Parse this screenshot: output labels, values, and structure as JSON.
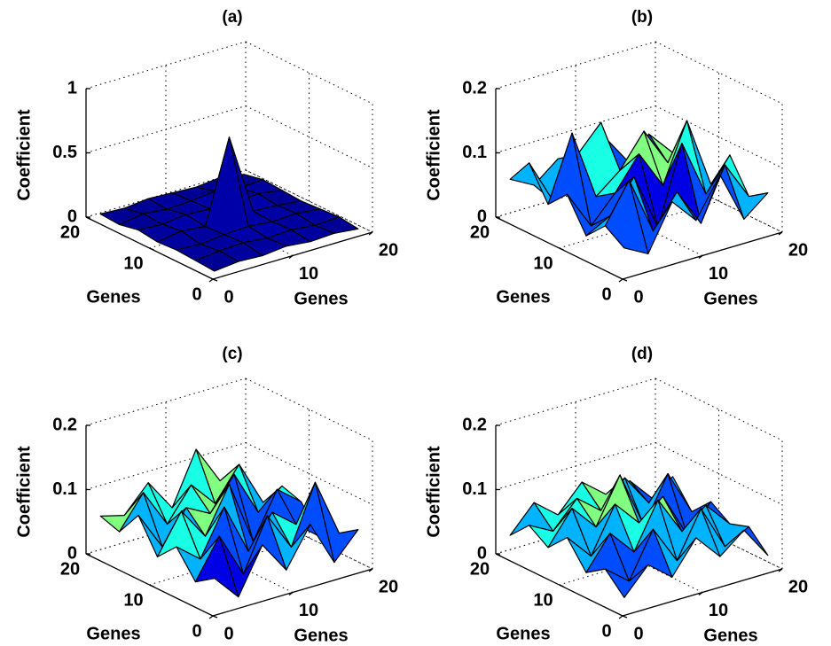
{
  "chart_data": [
    {
      "type": "surface",
      "title": "(a)",
      "xlabel": "Genes",
      "ylabel": "Genes",
      "zlabel": "Coefficient",
      "x": [
        1,
        4,
        7,
        10,
        13,
        16,
        19
      ],
      "y": [
        1,
        4,
        7,
        10,
        13,
        16,
        19
      ],
      "z": [
        [
          0.02,
          0.04,
          0.03,
          0.05,
          0.03,
          0.04,
          0.02
        ],
        [
          0.03,
          0.05,
          0.06,
          0.04,
          0.05,
          0.03,
          0.04
        ],
        [
          0.04,
          0.03,
          0.05,
          0.06,
          0.04,
          0.05,
          0.03
        ],
        [
          0.03,
          0.06,
          0.04,
          0.68,
          0.05,
          0.04,
          0.02
        ],
        [
          0.05,
          0.04,
          0.06,
          0.05,
          0.04,
          0.06,
          0.03
        ],
        [
          0.02,
          0.05,
          0.03,
          0.04,
          0.06,
          0.03,
          0.04
        ],
        [
          0.03,
          0.02,
          0.04,
          0.03,
          0.02,
          0.04,
          0.01
        ]
      ],
      "xlim": [
        0,
        20
      ],
      "ylim": [
        0,
        20
      ],
      "zlim": [
        0,
        1
      ],
      "xticks": [
        0,
        10,
        20
      ],
      "yticks": [
        0,
        10,
        20
      ],
      "zticks": [
        0,
        0.5,
        1
      ],
      "colormap": "jet",
      "clim": [
        0,
        1
      ],
      "grid": true
    },
    {
      "type": "surface",
      "title": "(b)",
      "xlabel": "Genes",
      "ylabel": "Genes",
      "zlabel": "Coefficient",
      "x": [
        1,
        4,
        7,
        10,
        13,
        16,
        19
      ],
      "y": [
        1,
        4,
        7,
        10,
        13,
        16,
        19
      ],
      "z": [
        [
          0.04,
          0.02,
          0.09,
          0.05,
          0.11,
          0.03,
          0.06
        ],
        [
          0.06,
          0.12,
          0.03,
          0.08,
          0.02,
          0.1,
          0.04
        ],
        [
          0.03,
          0.05,
          0.1,
          0.01,
          0.13,
          0.04,
          0.09
        ],
        [
          0.08,
          0.02,
          0.06,
          0.11,
          0.05,
          0.14,
          0.03
        ],
        [
          0.05,
          0.15,
          0.04,
          0.07,
          0.12,
          0.06,
          0.08
        ],
        [
          0.1,
          0.03,
          0.09,
          0.13,
          0.02,
          0.09,
          0.05
        ],
        [
          0.06,
          0.04,
          0.07,
          0.05,
          0.08,
          0.03,
          0.02
        ]
      ],
      "xlim": [
        0,
        20
      ],
      "ylim": [
        0,
        20
      ],
      "zlim": [
        0,
        0.2
      ],
      "xticks": [
        0,
        10,
        20
      ],
      "yticks": [
        0,
        10,
        20
      ],
      "zticks": [
        0,
        0.1,
        0.2
      ],
      "colormap": "jet",
      "clim": [
        0,
        0.1
      ],
      "grid": true
    },
    {
      "type": "surface",
      "title": "(c)",
      "xlabel": "Genes",
      "ylabel": "Genes",
      "zlabel": "Coefficient",
      "x": [
        1,
        4,
        7,
        10,
        13,
        16,
        19
      ],
      "y": [
        1,
        4,
        7,
        10,
        13,
        16,
        19
      ],
      "z": [
        [
          0.05,
          0.01,
          0.08,
          0.03,
          0.09,
          0.02,
          0.06
        ],
        [
          0.03,
          0.09,
          0.02,
          0.1,
          0.04,
          0.13,
          0.04
        ],
        [
          0.07,
          0.04,
          0.11,
          0.03,
          0.08,
          0.05,
          0.02
        ],
        [
          0.04,
          0.1,
          0.05,
          0.12,
          0.02,
          0.09,
          0.06
        ],
        [
          0.09,
          0.03,
          0.08,
          0.06,
          0.11,
          0.04,
          0.07
        ],
        [
          0.05,
          0.1,
          0.04,
          0.09,
          0.05,
          0.1,
          0.03
        ],
        [
          0.06,
          0.05,
          0.09,
          0.04,
          0.12,
          0.06,
          0.05
        ]
      ],
      "xlim": [
        0,
        20
      ],
      "ylim": [
        0,
        20
      ],
      "zlim": [
        0,
        0.2
      ],
      "xticks": [
        0,
        10,
        20
      ],
      "yticks": [
        0,
        10,
        20
      ],
      "zticks": [
        0,
        0.1,
        0.2
      ],
      "colormap": "jet",
      "clim": [
        0,
        0.1
      ],
      "grid": true
    },
    {
      "type": "surface",
      "title": "(d)",
      "xlabel": "Genes",
      "ylabel": "Genes",
      "zlabel": "Coefficient",
      "x": [
        1,
        4,
        7,
        10,
        13,
        16,
        19
      ],
      "y": [
        1,
        4,
        7,
        10,
        13,
        16,
        19
      ],
      "z": [
        [
          0.02,
          0.06,
          0.03,
          0.08,
          0.04,
          0.07,
          0.02
        ],
        [
          0.05,
          0.02,
          0.09,
          0.03,
          0.1,
          0.03,
          0.05
        ],
        [
          0.03,
          0.08,
          0.04,
          0.11,
          0.05,
          0.08,
          0.04
        ],
        [
          0.07,
          0.03,
          0.1,
          0.06,
          0.09,
          0.02,
          0.06
        ],
        [
          0.04,
          0.09,
          0.05,
          0.12,
          0.03,
          0.1,
          0.03
        ],
        [
          0.06,
          0.04,
          0.08,
          0.05,
          0.09,
          0.04,
          0.07
        ],
        [
          0.03,
          0.07,
          0.04,
          0.08,
          0.05,
          0.06,
          0.02
        ]
      ],
      "xlim": [
        0,
        20
      ],
      "ylim": [
        0,
        20
      ],
      "zlim": [
        0,
        0.2
      ],
      "xticks": [
        0,
        10,
        20
      ],
      "yticks": [
        0,
        10,
        20
      ],
      "zticks": [
        0,
        0.1,
        0.2
      ],
      "colormap": "jet",
      "clim": [
        0,
        0.1
      ],
      "grid": true
    }
  ]
}
